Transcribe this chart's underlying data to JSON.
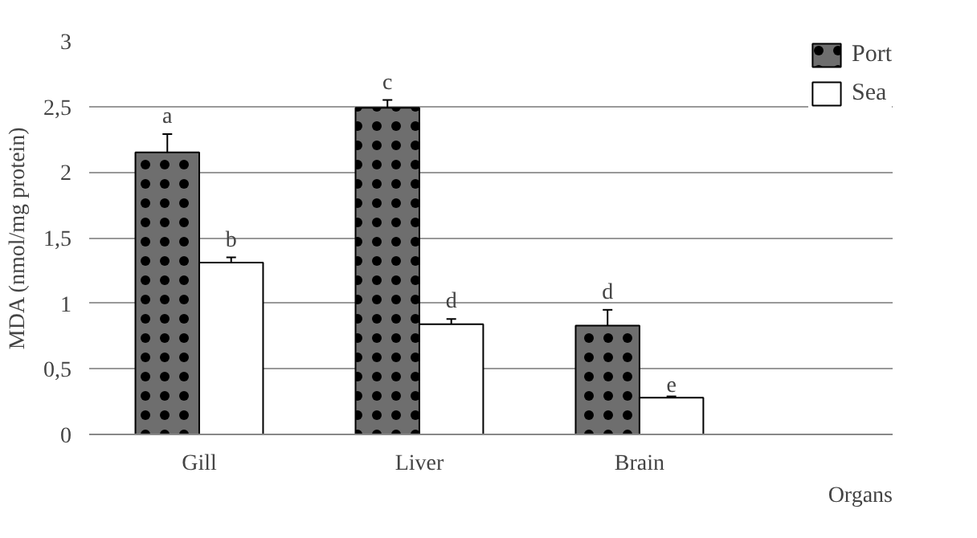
{
  "chart_data": {
    "type": "bar",
    "ylabel": "MDA (nmol/mg protein)",
    "xlabel": "Organs",
    "categories": [
      "Gill",
      "Liver",
      "Brain"
    ],
    "series": [
      {
        "name": "Port",
        "color": "#6e6e6e",
        "values": [
          2.15,
          2.49,
          0.83
        ],
        "errors": [
          0.14,
          0.06,
          0.12
        ],
        "value_labels": [
          "a",
          "c",
          "d"
        ]
      },
      {
        "name": "Sea",
        "color": "#ffffff",
        "values": [
          1.31,
          0.84,
          0.28
        ],
        "errors": [
          0.04,
          0.04,
          0.01
        ],
        "value_labels": [
          "b",
          "d",
          "e"
        ]
      }
    ],
    "ylim": [
      0,
      3
    ],
    "yticks": [
      0,
      {
        "value": 0.5,
        "label": "0,5"
      },
      1,
      {
        "value": 1.5,
        "label": "1,5"
      },
      2,
      {
        "value": 2.5,
        "label": "2,5"
      },
      3
    ],
    "grid": "y",
    "legend": "top right"
  }
}
